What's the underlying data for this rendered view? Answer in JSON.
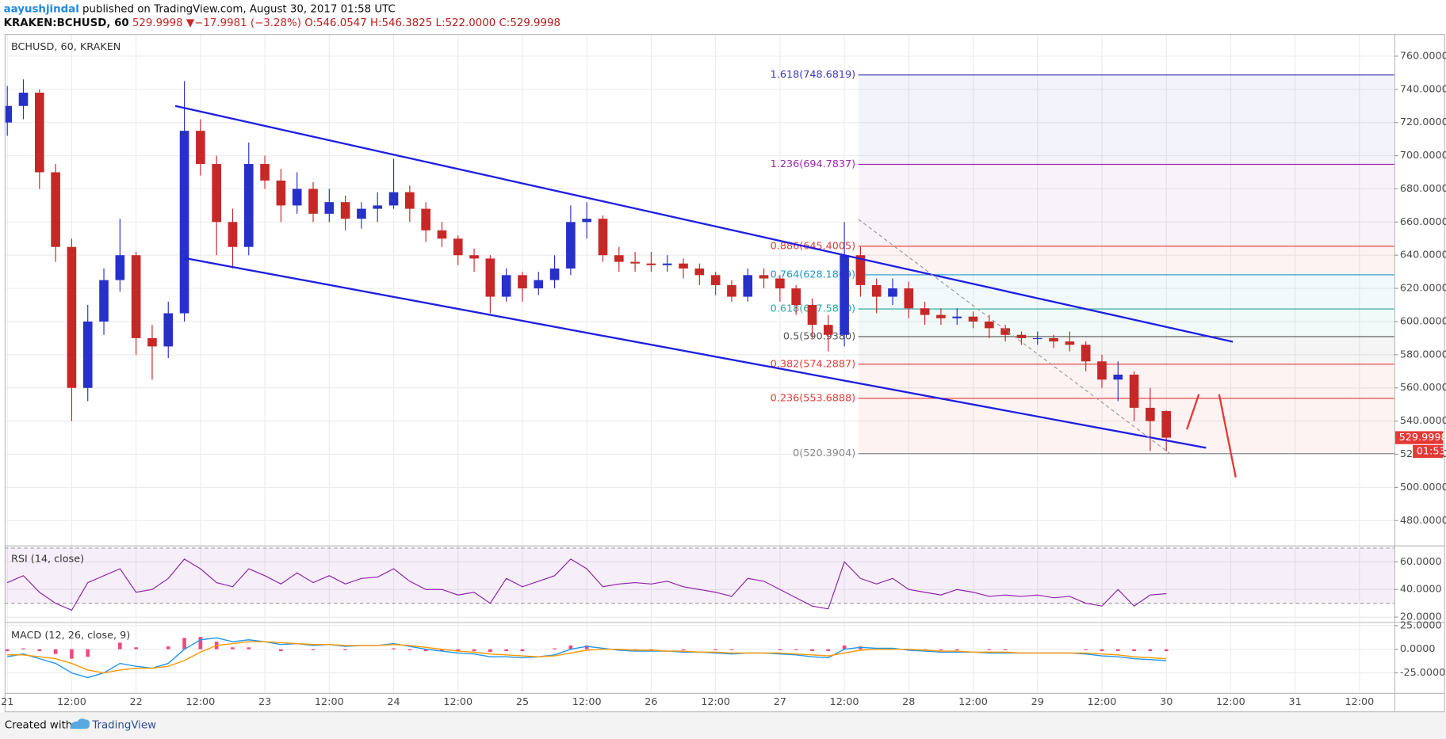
{
  "header": {
    "author": "aayushjindal",
    "published": "published on TradingView.com, August 30, 2017 01:58 UTC",
    "symbol": "KRAKEN:BCHUSD, 60",
    "last": "529.9998",
    "direction": "▼",
    "change": "−17.9981 (−3.28%)",
    "open": "O:546.0547",
    "high": "H:546.3825",
    "low": "L:522.0000",
    "close": "C:529.9998"
  },
  "chart_data": [
    {
      "type": "candlestick",
      "title": "BCHUSD, 60, KRAKEN",
      "x": [
        0,
        3,
        6,
        9,
        12,
        15,
        18,
        21,
        24,
        27,
        30,
        33,
        36,
        39,
        42,
        45,
        48,
        51,
        54,
        57,
        60,
        63,
        66,
        69,
        72,
        75,
        78,
        81,
        84,
        87,
        90,
        93,
        96,
        99,
        102,
        105,
        108,
        111,
        114,
        117,
        120,
        123,
        126,
        129,
        132,
        135,
        138,
        141,
        144,
        147,
        150,
        153,
        156,
        159,
        162,
        165,
        168,
        171,
        174,
        177,
        180,
        183,
        186,
        189,
        192,
        195,
        198,
        201,
        204,
        207,
        210,
        213,
        216
      ],
      "open": [
        720,
        730,
        738,
        690,
        645,
        560,
        600,
        625,
        640,
        590,
        585,
        605,
        715,
        695,
        660,
        645,
        695,
        685,
        670,
        680,
        665,
        672,
        662,
        668,
        670,
        678,
        668,
        655,
        650,
        640,
        638,
        615,
        628,
        620,
        625,
        632,
        660,
        662,
        640,
        636,
        635,
        634,
        635,
        632,
        628,
        622,
        615,
        628,
        626,
        620,
        610,
        598,
        592,
        640,
        622,
        615,
        620,
        608,
        604,
        602,
        603,
        600,
        596,
        592,
        590,
        590,
        588,
        586,
        576,
        565,
        568,
        548,
        546.0547
      ],
      "high": [
        742,
        746,
        740,
        695,
        650,
        610,
        632,
        662,
        642,
        598,
        612,
        745,
        722,
        700,
        668,
        708,
        700,
        692,
        690,
        684,
        680,
        676,
        672,
        678,
        698,
        682,
        672,
        660,
        652,
        644,
        640,
        632,
        630,
        630,
        640,
        670,
        672,
        664,
        645,
        642,
        642,
        640,
        638,
        635,
        630,
        625,
        632,
        632,
        628,
        622,
        614,
        604,
        660,
        645,
        626,
        626,
        624,
        612,
        608,
        608,
        606,
        604,
        598,
        594,
        594,
        592,
        594,
        588,
        580,
        576,
        570,
        560,
        546.3825
      ],
      "low": [
        712,
        722,
        680,
        636,
        540,
        552,
        592,
        618,
        580,
        565,
        578,
        600,
        688,
        640,
        632,
        640,
        680,
        660,
        665,
        660,
        660,
        655,
        656,
        660,
        668,
        660,
        648,
        645,
        634,
        630,
        605,
        612,
        612,
        616,
        620,
        628,
        650,
        636,
        630,
        630,
        630,
        630,
        626,
        622,
        616,
        612,
        612,
        620,
        612,
        604,
        590,
        582,
        585,
        615,
        605,
        610,
        602,
        598,
        598,
        598,
        596,
        590,
        588,
        586,
        586,
        584,
        582,
        570,
        560,
        552,
        540,
        522,
        522
      ],
      "close": [
        730,
        738,
        690,
        645,
        560,
        600,
        625,
        640,
        590,
        585,
        605,
        715,
        695,
        660,
        645,
        695,
        685,
        670,
        680,
        665,
        672,
        662,
        668,
        670,
        678,
        668,
        655,
        650,
        640,
        638,
        615,
        628,
        620,
        625,
        632,
        660,
        662,
        640,
        636,
        635,
        634,
        635,
        632,
        628,
        622,
        615,
        628,
        626,
        620,
        610,
        598,
        592,
        640,
        622,
        615,
        620,
        608,
        604,
        602,
        603,
        600,
        596,
        592,
        590,
        590,
        588,
        586,
        576,
        565,
        568,
        548,
        540,
        529.9998
      ],
      "up_color": "#2730c8",
      "down_color": "#c62828",
      "xlim": [
        -0.5,
        258.5
      ],
      "xticks": [
        {
          "value": 0,
          "label": "21"
        },
        {
          "value": 12,
          "label": "12:00"
        },
        {
          "value": 24,
          "label": "22"
        },
        {
          "value": 36,
          "label": "12:00"
        },
        {
          "value": 48,
          "label": "23"
        },
        {
          "value": 60,
          "label": "12:00"
        },
        {
          "value": 72,
          "label": "24"
        },
        {
          "value": 84,
          "label": "12:00"
        },
        {
          "value": 96,
          "label": "25"
        },
        {
          "value": 108,
          "label": "12:00"
        },
        {
          "value": 120,
          "label": "26"
        },
        {
          "value": 132,
          "label": "12:00"
        },
        {
          "value": 144,
          "label": "27"
        },
        {
          "value": 156,
          "label": "12:00"
        },
        {
          "value": 168,
          "label": "28"
        },
        {
          "value": 180,
          "label": "12:00"
        },
        {
          "value": 192,
          "label": "29"
        },
        {
          "value": 204,
          "label": "12:00"
        },
        {
          "value": 216,
          "label": "30"
        },
        {
          "value": 228,
          "label": "12:00"
        },
        {
          "value": 240,
          "label": "31"
        },
        {
          "value": 252,
          "label": "12:00"
        }
      ],
      "ylim": [
        465,
        773.3
      ],
      "yticks": [
        {
          "value": 480,
          "label": "480.0000"
        },
        {
          "value": 500,
          "label": "500.0000"
        },
        {
          "value": 520,
          "label": "520.0000"
        },
        {
          "value": 540,
          "label": "540.0000"
        },
        {
          "value": 560,
          "label": "560.0000"
        },
        {
          "value": 580,
          "label": "580.0000"
        },
        {
          "value": 600,
          "label": "600.0000"
        },
        {
          "value": 620,
          "label": "620.0000"
        },
        {
          "value": 640,
          "label": "640.0000"
        },
        {
          "value": 660,
          "label": "660.0000"
        },
        {
          "value": 680,
          "label": "680.0000"
        },
        {
          "value": 700,
          "label": "700.0000"
        },
        {
          "value": 720,
          "label": "720.0000"
        },
        {
          "value": 740,
          "label": "740.0000"
        },
        {
          "value": 760,
          "label": "760.0000"
        }
      ],
      "grid": true,
      "fib_start": 158.6,
      "fib_levels": [
        {
          "value": 748.6819,
          "label": "1.618(748.6819)",
          "color": "#3b3bb3"
        },
        {
          "value": 694.7837,
          "label": "1.236(694.7837)",
          "color": "#9c27b0"
        },
        {
          "value": 645.4005,
          "label": "0.886(645.4005)",
          "color": "#e53935"
        },
        {
          "value": 628.1869,
          "label": "0.764(628.1869)",
          "color": "#2196c4"
        },
        {
          "value": 607.587,
          "label": "0.618(607.5870)",
          "color": "#26a69a"
        },
        {
          "value": 590.938,
          "label": "0.5(590.9380)",
          "color": "#555555"
        },
        {
          "value": 574.2887,
          "label": "0.382(574.2887)",
          "color": "#e53935"
        },
        {
          "value": 553.6888,
          "label": "0.236(553.6888)",
          "color": "#e53935"
        },
        {
          "value": 520.3904,
          "label": "0(520.3904)",
          "color": "#888888"
        }
      ],
      "lines": [
        {
          "x": [
            31.3,
            228.4
          ],
          "y": [
            730,
            587.8
          ],
          "color": "#1f1fe0",
          "dashed": false
        },
        {
          "x": [
            33,
            223.4
          ],
          "y": [
            638.3,
            523.9
          ],
          "color": "#1f1fe0",
          "dashed": false
        },
        {
          "x": [
            158.6,
            216.6
          ],
          "y": [
            661.7,
            520.6
          ],
          "color": "#9a9a9a",
          "dashed": true
        }
      ],
      "last_price_label": "529.9998",
      "countdown": "01:53"
    },
    {
      "type": "line",
      "title": "RSI (14, close)",
      "values": [
        45,
        50,
        38,
        30,
        25,
        45,
        50,
        55,
        38,
        40,
        48,
        62,
        55,
        45,
        42,
        55,
        50,
        44,
        52,
        45,
        50,
        44,
        48,
        49,
        55,
        46,
        40,
        40,
        36,
        38,
        30,
        48,
        42,
        46,
        50,
        62,
        55,
        42,
        44,
        45,
        44,
        46,
        42,
        40,
        38,
        35,
        48,
        46,
        40,
        34,
        28,
        26,
        60,
        48,
        44,
        48,
        40,
        38,
        36,
        40,
        38,
        35,
        36,
        35,
        36,
        34,
        35,
        30,
        28,
        40,
        28,
        36,
        37
      ],
      "color": "#8e24aa",
      "bands": [
        30,
        70
      ],
      "ylim": [
        16.5,
        71.2
      ],
      "yticks": [
        {
          "value": 20,
          "label": "20.0000"
        },
        {
          "value": 40,
          "label": "40.0000"
        },
        {
          "value": 60,
          "label": "60.0000"
        }
      ],
      "grid": true
    },
    {
      "type": "macd",
      "title": "MACD (12, 26, close, 9)",
      "macd_values": [
        -8,
        -5,
        -10,
        -15,
        -25,
        -30,
        -25,
        -15,
        -18,
        -20,
        -15,
        0,
        10,
        12,
        8,
        10,
        8,
        5,
        6,
        4,
        5,
        3,
        4,
        4,
        6,
        3,
        0,
        -2,
        -4,
        -5,
        -8,
        -8,
        -9,
        -8,
        -6,
        0,
        3,
        1,
        -1,
        -2,
        -2,
        -2,
        -3,
        -3,
        -4,
        -5,
        -4,
        -4,
        -5,
        -6,
        -8,
        -9,
        0,
        2,
        1,
        1,
        -1,
        -2,
        -3,
        -3,
        -3,
        -4,
        -4,
        -4,
        -4,
        -4,
        -4,
        -5,
        -7,
        -8,
        -10,
        -11,
        -12
      ],
      "macd_color": "#2196f3",
      "signal_values": [
        -6,
        -6,
        -8,
        -10,
        -15,
        -22,
        -25,
        -22,
        -20,
        -20,
        -18,
        -12,
        -3,
        4,
        6,
        8,
        8,
        7,
        6,
        5,
        5,
        4,
        4,
        4,
        5,
        4,
        2,
        0,
        -2,
        -3,
        -5,
        -6,
        -7,
        -8,
        -7,
        -4,
        -1,
        0,
        0,
        -1,
        -1,
        -2,
        -2,
        -3,
        -3,
        -4,
        -4,
        -4,
        -4,
        -5,
        -6,
        -7,
        -4,
        -1,
        0,
        0,
        0,
        -1,
        -2,
        -2,
        -3,
        -3,
        -3,
        -4,
        -4,
        -4,
        -4,
        -4,
        -5,
        -6,
        -8,
        -9,
        -10
      ],
      "signal_color": "#ff9800",
      "hist_values": [
        -2,
        1,
        -2,
        -5,
        -10,
        -8,
        0,
        7,
        2,
        0,
        3,
        12,
        13,
        8,
        2,
        2,
        0,
        -2,
        0,
        -1,
        0,
        -1,
        0,
        0,
        1,
        -1,
        -2,
        -2,
        -2,
        -2,
        -3,
        -2,
        -2,
        0,
        1,
        4,
        4,
        1,
        -1,
        -1,
        -1,
        0,
        -1,
        0,
        -1,
        -1,
        0,
        0,
        -1,
        -1,
        -2,
        -2,
        4,
        3,
        1,
        1,
        -1,
        -1,
        -1,
        -1,
        0,
        -1,
        -1,
        0,
        0,
        0,
        0,
        -1,
        -2,
        -2,
        -2,
        -2,
        -2
      ],
      "hist_color": "#e91e63",
      "ylim": [
        -46.2,
        27.9
      ],
      "yticks": [
        {
          "value": -25,
          "label": "-25.0000"
        },
        {
          "value": 0,
          "label": "0.0000"
        },
        {
          "value": 25,
          "label": "25.0000"
        }
      ],
      "grid": true
    }
  ],
  "footer": {
    "created": "Created with",
    "brand": "TradingView"
  }
}
